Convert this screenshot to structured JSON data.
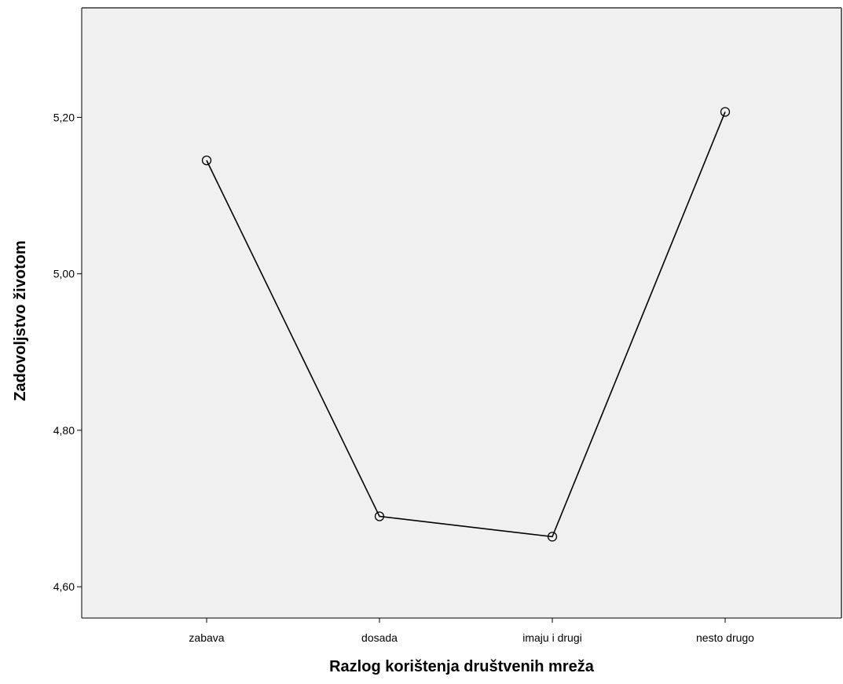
{
  "chart_data": {
    "type": "line",
    "xlabel": "Razlog korištenja društvenih mreža",
    "ylabel": "Zadovoljstvo životom",
    "categories": [
      "zabava",
      "dosada",
      "imaju i drugi",
      "nesto drugo"
    ],
    "series": [
      {
        "values": [
          5.145,
          4.69,
          4.664,
          5.207
        ]
      }
    ],
    "ylim": [
      4.56,
      5.34
    ],
    "yticks": [
      4.6,
      4.8,
      5.0,
      5.2
    ],
    "ytick_labels": [
      "4,60",
      "4,80",
      "5,00",
      "5,20"
    ],
    "marker": "open-circle",
    "grid": false,
    "legend": "none",
    "colors": {
      "plot_background": "#f0f0f0",
      "line": "#000000",
      "axis": "#000000",
      "frame": "#666666"
    }
  }
}
